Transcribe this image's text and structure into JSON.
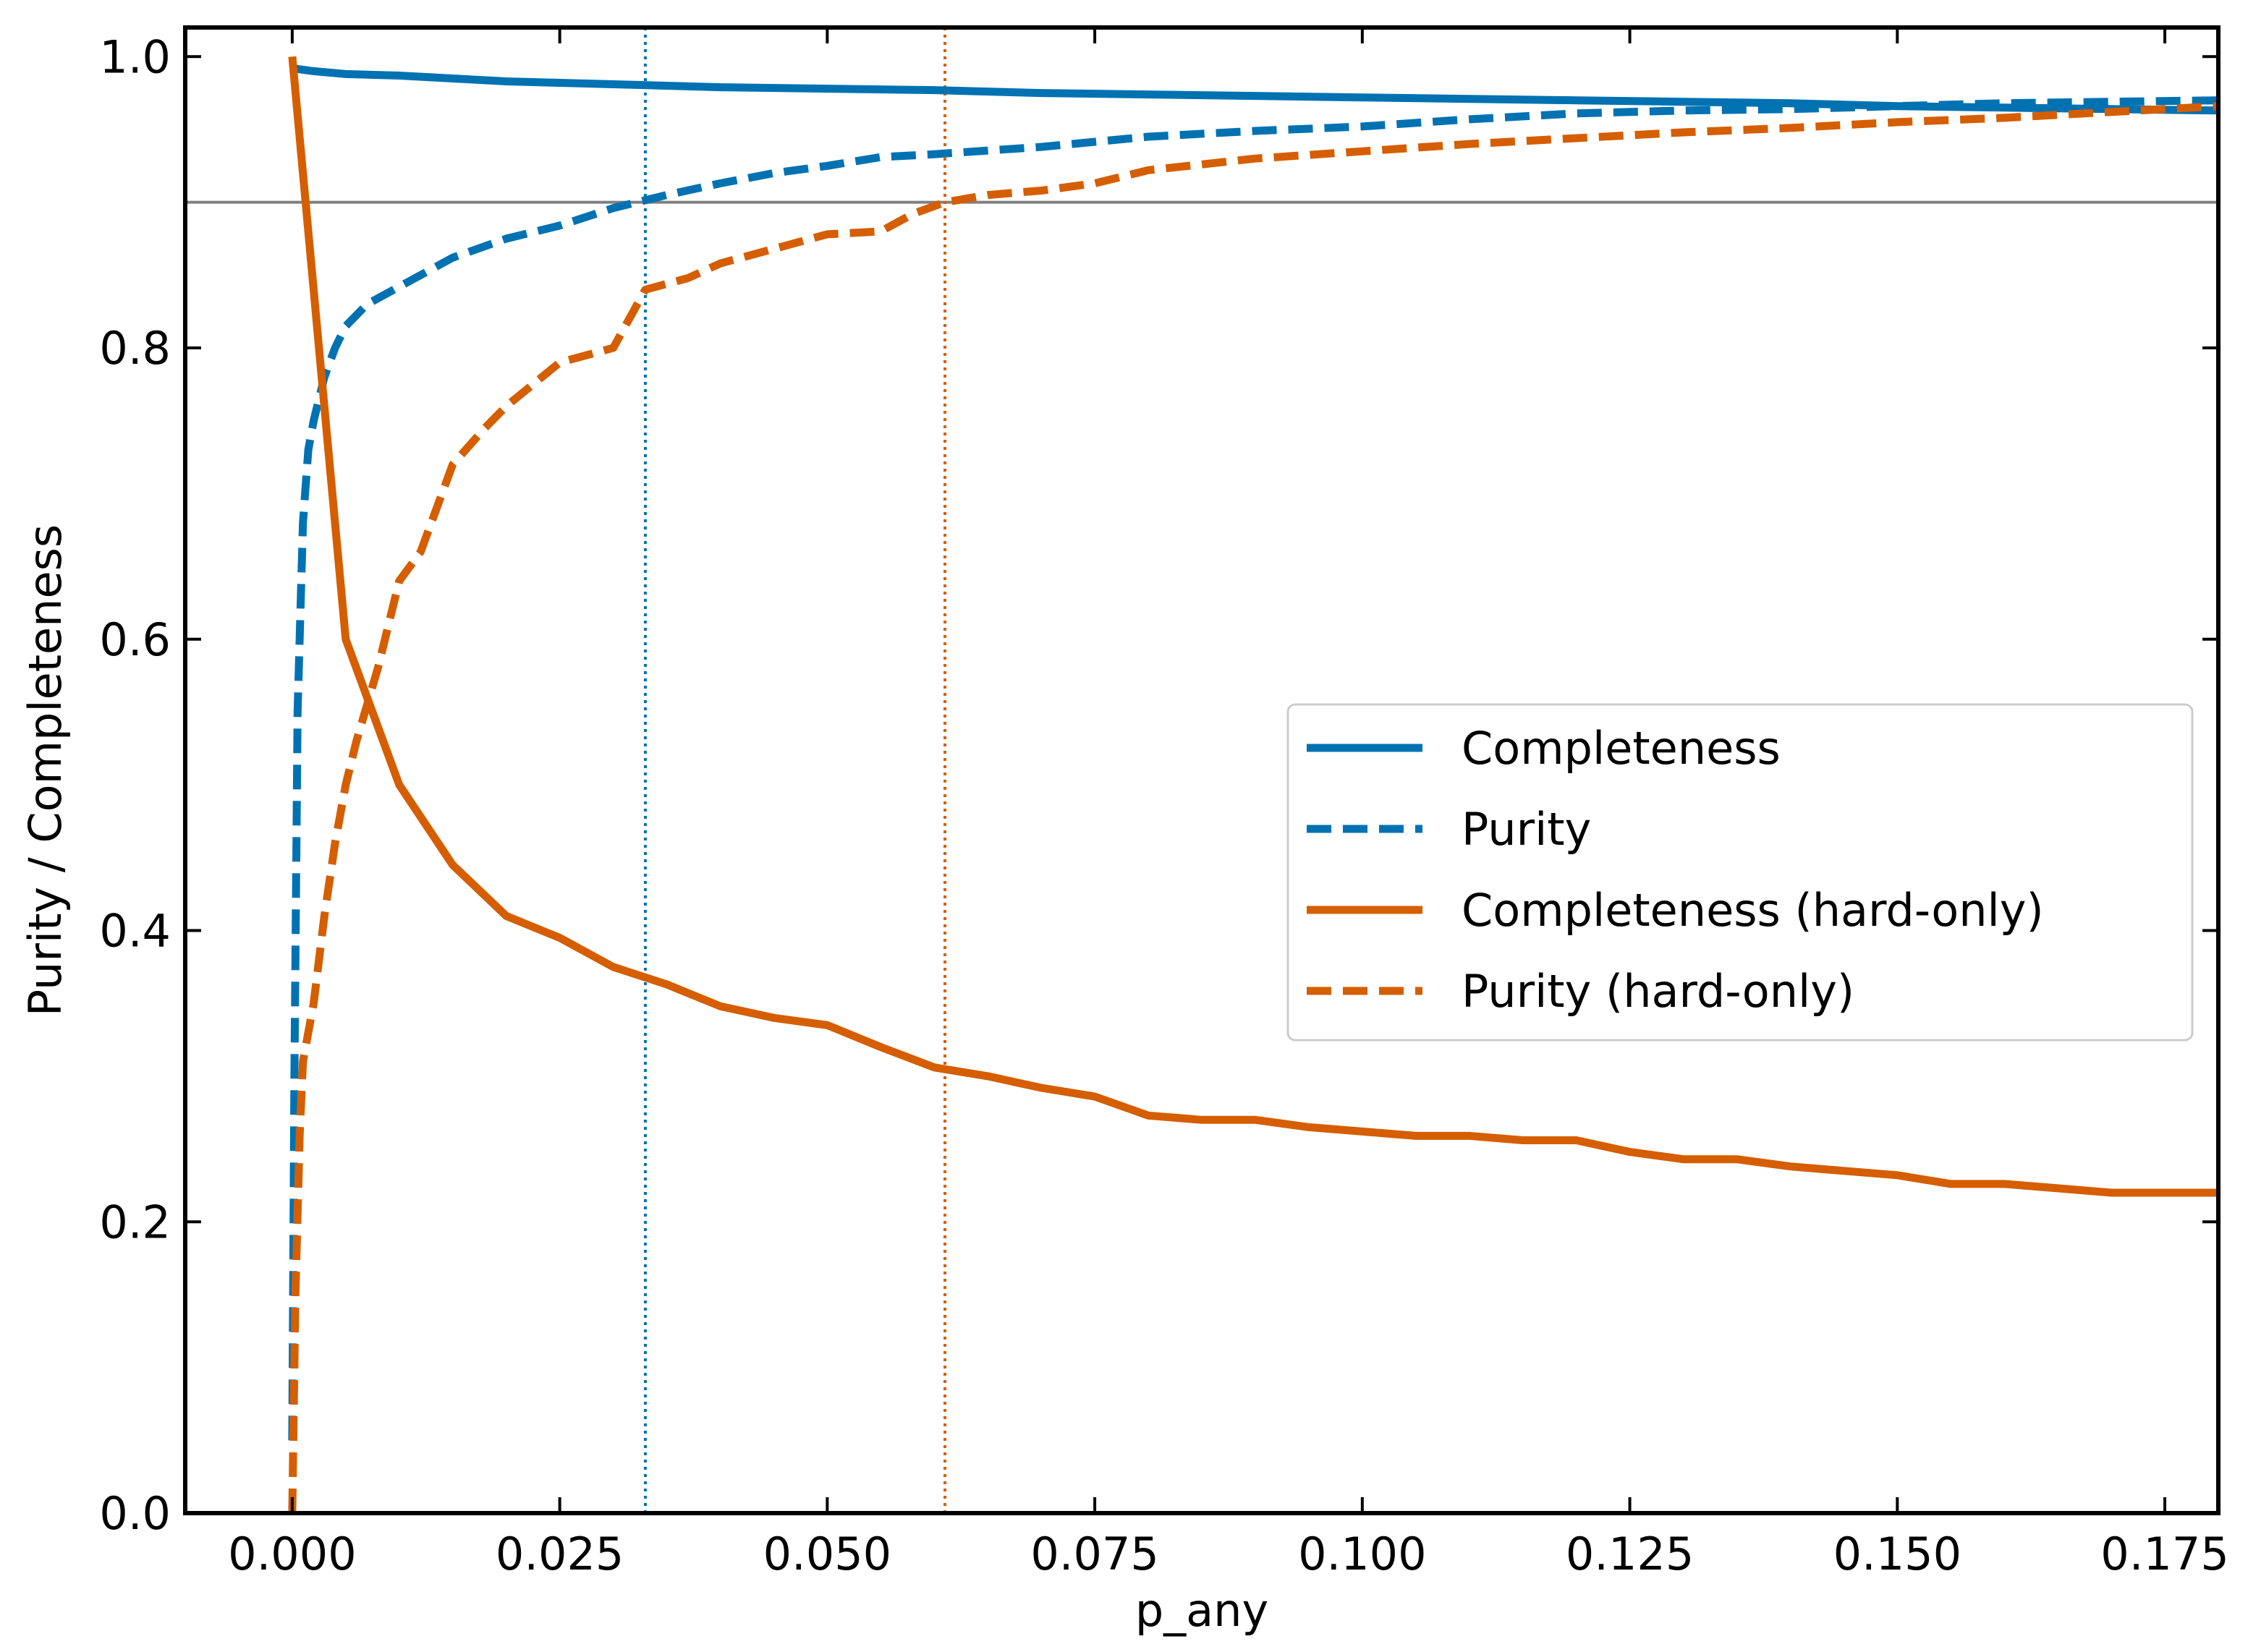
{
  "chart_data": {
    "type": "line",
    "title": "",
    "xlabel": "p_any",
    "ylabel": "Purity / Completeness",
    "xlim": [
      -0.01,
      0.18
    ],
    "ylim": [
      0.0,
      1.02
    ],
    "xticks": [
      0.0,
      0.025,
      0.05,
      0.075,
      0.1,
      0.125,
      0.15,
      0.175
    ],
    "xtick_labels": [
      "0.000",
      "0.025",
      "0.050",
      "0.075",
      "0.100",
      "0.125",
      "0.150",
      "0.175"
    ],
    "yticks": [
      0.0,
      0.2,
      0.4,
      0.6,
      0.8,
      1.0
    ],
    "ytick_labels": [
      "0.0",
      "0.2",
      "0.4",
      "0.6",
      "0.8",
      "1.0"
    ],
    "grid": false,
    "legend_position": "center-right",
    "reference_lines": [
      {
        "orientation": "horizontal",
        "value": 0.9,
        "color": "#808080",
        "style": "solid"
      },
      {
        "orientation": "vertical",
        "value": 0.033,
        "color": "#0072B2",
        "style": "dotted"
      },
      {
        "orientation": "vertical",
        "value": 0.061,
        "color": "#D55E00",
        "style": "dotted"
      }
    ],
    "series": [
      {
        "name": "Completeness",
        "color": "#0072B2",
        "style": "solid",
        "x": [
          0.0,
          0.002,
          0.005,
          0.01,
          0.015,
          0.02,
          0.025,
          0.03,
          0.04,
          0.05,
          0.06,
          0.07,
          0.08,
          0.09,
          0.1,
          0.11,
          0.12,
          0.13,
          0.14,
          0.15,
          0.16,
          0.17,
          0.18
        ],
        "y": [
          0.992,
          0.99,
          0.988,
          0.987,
          0.985,
          0.983,
          0.982,
          0.981,
          0.979,
          0.978,
          0.977,
          0.975,
          0.974,
          0.973,
          0.972,
          0.971,
          0.97,
          0.969,
          0.968,
          0.966,
          0.965,
          0.964,
          0.963
        ]
      },
      {
        "name": "Purity",
        "color": "#0072B2",
        "style": "dashed",
        "x": [
          0.0,
          0.0002,
          0.0005,
          0.001,
          0.0015,
          0.002,
          0.003,
          0.004,
          0.005,
          0.007,
          0.01,
          0.015,
          0.02,
          0.025,
          0.03,
          0.035,
          0.04,
          0.045,
          0.05,
          0.055,
          0.06,
          0.07,
          0.08,
          0.09,
          0.1,
          0.11,
          0.12,
          0.13,
          0.14,
          0.15,
          0.16,
          0.17,
          0.18
        ],
        "y": [
          0.05,
          0.3,
          0.55,
          0.68,
          0.73,
          0.75,
          0.78,
          0.8,
          0.815,
          0.83,
          0.842,
          0.862,
          0.875,
          0.884,
          0.896,
          0.905,
          0.913,
          0.92,
          0.925,
          0.931,
          0.933,
          0.938,
          0.945,
          0.949,
          0.952,
          0.957,
          0.961,
          0.963,
          0.964,
          0.966,
          0.968,
          0.969,
          0.97
        ]
      },
      {
        "name": "Completeness (hard-only)",
        "color": "#D55E00",
        "style": "solid",
        "x": [
          0.0,
          0.005,
          0.01,
          0.015,
          0.02,
          0.025,
          0.03,
          0.035,
          0.04,
          0.045,
          0.05,
          0.055,
          0.06,
          0.065,
          0.07,
          0.075,
          0.08,
          0.085,
          0.09,
          0.095,
          0.1,
          0.105,
          0.11,
          0.115,
          0.12,
          0.125,
          0.13,
          0.135,
          0.14,
          0.145,
          0.15,
          0.155,
          0.16,
          0.165,
          0.17,
          0.175,
          0.18
        ],
        "y": [
          1.0,
          0.6,
          0.5,
          0.445,
          0.41,
          0.395,
          0.375,
          0.363,
          0.348,
          0.34,
          0.335,
          0.32,
          0.306,
          0.3,
          0.292,
          0.286,
          0.273,
          0.27,
          0.27,
          0.265,
          0.262,
          0.259,
          0.259,
          0.256,
          0.256,
          0.248,
          0.243,
          0.243,
          0.238,
          0.235,
          0.232,
          0.226,
          0.226,
          0.223,
          0.22,
          0.22,
          0.22
        ]
      },
      {
        "name": "Purity (hard-only)",
        "color": "#D55E00",
        "style": "dashed",
        "x": [
          0.0,
          0.0003,
          0.0007,
          0.001,
          0.002,
          0.003,
          0.004,
          0.005,
          0.006,
          0.008,
          0.01,
          0.012,
          0.015,
          0.018,
          0.02,
          0.025,
          0.03,
          0.033,
          0.037,
          0.04,
          0.045,
          0.05,
          0.055,
          0.058,
          0.061,
          0.065,
          0.07,
          0.075,
          0.08,
          0.085,
          0.09,
          0.1,
          0.11,
          0.12,
          0.13,
          0.14,
          0.15,
          0.16,
          0.17,
          0.18
        ],
        "y": [
          0.0,
          0.15,
          0.26,
          0.31,
          0.35,
          0.41,
          0.46,
          0.5,
          0.53,
          0.58,
          0.64,
          0.66,
          0.72,
          0.745,
          0.76,
          0.79,
          0.8,
          0.84,
          0.848,
          0.858,
          0.868,
          0.878,
          0.88,
          0.892,
          0.9,
          0.905,
          0.908,
          0.913,
          0.922,
          0.926,
          0.93,
          0.935,
          0.94,
          0.944,
          0.948,
          0.951,
          0.955,
          0.958,
          0.962,
          0.966
        ]
      }
    ]
  }
}
